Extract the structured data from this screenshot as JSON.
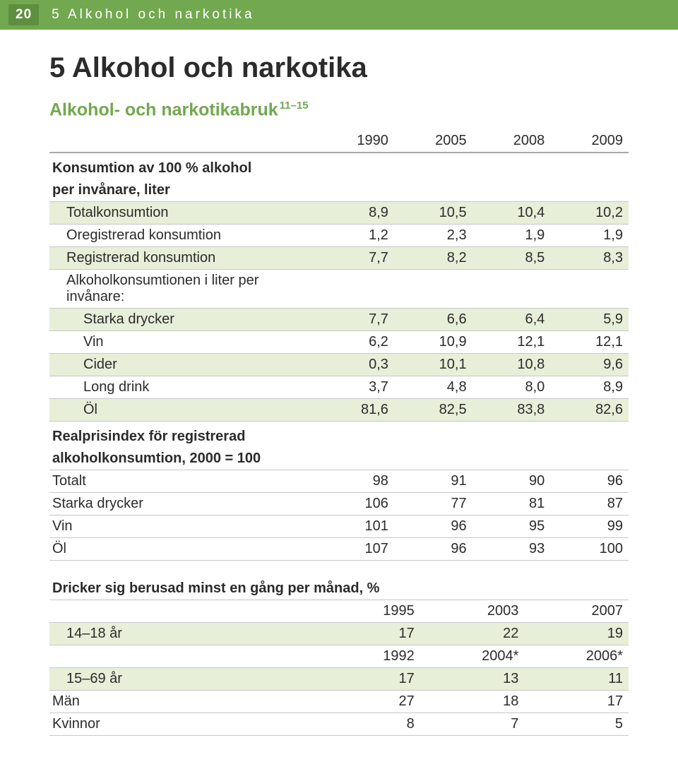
{
  "header": {
    "page_number": "20",
    "chapter_label": "5  Alkohol och narkotika"
  },
  "title": "5  Alkohol och narkotika",
  "subtitle": "Alkohol- och narkotikabruk",
  "subtitle_sup": "11–15",
  "table1": {
    "years": [
      "1990",
      "2005",
      "2008",
      "2009"
    ],
    "section1_head1": "Konsumtion av 100 % alkohol",
    "section1_head2": "per invånare, liter",
    "rows_s1": [
      {
        "label": "Totalkonsumtion",
        "vals": [
          "8,9",
          "10,5",
          "10,4",
          "10,2"
        ],
        "shade": true,
        "indent": 1
      },
      {
        "label": "Oregistrerad konsumtion",
        "vals": [
          "1,2",
          "2,3",
          "1,9",
          "1,9"
        ],
        "shade": false,
        "indent": 1
      },
      {
        "label": "Registrerad konsumtion",
        "vals": [
          "7,7",
          "8,2",
          "8,5",
          "8,3"
        ],
        "shade": true,
        "indent": 1
      },
      {
        "label": "Alkoholkonsumtionen i liter per invånare:",
        "vals": [
          "",
          "",
          "",
          ""
        ],
        "shade": false,
        "indent": 1
      },
      {
        "label": "Starka drycker",
        "vals": [
          "7,7",
          "6,6",
          "6,4",
          "5,9"
        ],
        "shade": true,
        "indent": 2
      },
      {
        "label": "Vin",
        "vals": [
          "6,2",
          "10,9",
          "12,1",
          "12,1"
        ],
        "shade": false,
        "indent": 2
      },
      {
        "label": "Cider",
        "vals": [
          "0,3",
          "10,1",
          "10,8",
          "9,6"
        ],
        "shade": true,
        "indent": 2
      },
      {
        "label": "Long drink",
        "vals": [
          "3,7",
          "4,8",
          "8,0",
          "8,9"
        ],
        "shade": false,
        "indent": 2
      },
      {
        "label": "Öl",
        "vals": [
          "81,6",
          "82,5",
          "83,8",
          "82,6"
        ],
        "shade": true,
        "indent": 2
      }
    ],
    "section2_head1": "Realprisindex för registrerad",
    "section2_head2": "alkoholkonsumtion, 2000 = 100",
    "rows_s2": [
      {
        "label": "Totalt",
        "vals": [
          "98",
          "91",
          "90",
          "96"
        ],
        "shade": false,
        "indent": 0
      },
      {
        "label": "Starka drycker",
        "vals": [
          "106",
          "77",
          "81",
          "87"
        ],
        "shade": false,
        "indent": 0
      },
      {
        "label": "Vin",
        "vals": [
          "101",
          "96",
          "95",
          "99"
        ],
        "shade": false,
        "indent": 0
      },
      {
        "label": "Öl",
        "vals": [
          "107",
          "96",
          "93",
          "100"
        ],
        "shade": false,
        "indent": 0
      }
    ]
  },
  "table2": {
    "section_head": "Dricker sig berusad minst en gång per månad, %",
    "years_a": [
      "1995",
      "2003",
      "2007"
    ],
    "row_a": {
      "label": "14–18 år",
      "vals": [
        "17",
        "22",
        "19"
      ]
    },
    "years_b": [
      "1992",
      "2004*",
      "2006*"
    ],
    "rows_b": [
      {
        "label": "15–69 år",
        "vals": [
          "17",
          "13",
          "11"
        ],
        "shade": true,
        "indent": 1
      },
      {
        "label": "Män",
        "vals": [
          "27",
          "18",
          "17"
        ],
        "shade": false,
        "indent": 0
      },
      {
        "label": "Kvinnor",
        "vals": [
          "8",
          "7",
          "5"
        ],
        "shade": false,
        "indent": 0
      }
    ]
  },
  "colors": {
    "header_bar": "#72a84f",
    "header_num_bg": "#5d8f3e",
    "shade_row": "#e8efd9",
    "subtitle": "#72a84f",
    "text": "#2b2b2b",
    "rule": "#c7c7c7"
  }
}
